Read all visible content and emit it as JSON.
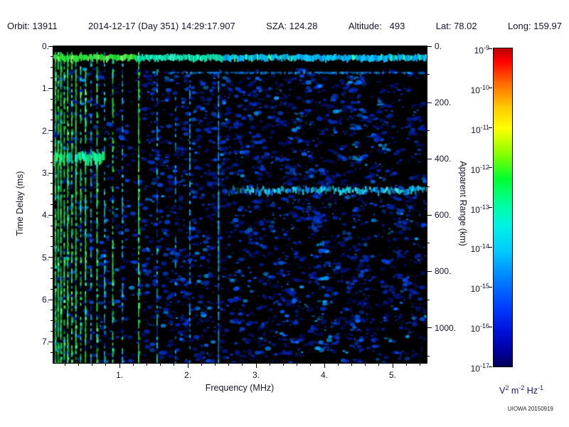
{
  "header": {
    "segments": [
      "Orbit: 13911",
      "2014-12-17 (Day 351) 14:29:17.907",
      "SZA: 124.28",
      "Altitude:   493",
      "Lat: 78.02",
      "Long: 159.97"
    ]
  },
  "credit": "UIOWA 20150919",
  "chart_data": {
    "type": "heatmap",
    "description": "Radar sounder ionogram: received spectral density vs frequency (x) and time delay / apparent range (y), log color scale",
    "xlabel": "Frequency (MHz)",
    "ylabel_left": "Time Delay (ms)",
    "ylabel_right": "Apparent Range (km)",
    "x_range": [
      0.03,
      5.5
    ],
    "x_ticks": [
      1,
      2,
      3,
      4,
      5
    ],
    "x_tick_labels": [
      "1.",
      "2.",
      "3.",
      "4.",
      "5."
    ],
    "x_minor_step": 0.2,
    "y_range": [
      0,
      7.5
    ],
    "y_ticks": [
      0,
      1,
      2,
      3,
      4,
      5,
      6,
      7
    ],
    "y_tick_labels": [
      "0.",
      "1.",
      "2.",
      "3.",
      "4.",
      "5.",
      "6.",
      "7."
    ],
    "y_minor_step": 0.25,
    "y2_range": [
      0,
      1125
    ],
    "y2_ticks": [
      0,
      200,
      400,
      600,
      800,
      1000
    ],
    "y2_tick_labels": [
      "0.",
      "200.",
      "400.",
      "600.",
      "800.",
      "1000."
    ],
    "y2_minor_step": 100,
    "background": "#000000",
    "colorbar": {
      "scale": "log",
      "value_range_exponents": [
        -17,
        -9
      ],
      "tick_exponents": [
        -9,
        -10,
        -11,
        -12,
        -13,
        -14,
        -15,
        -16,
        -17
      ],
      "unit_segments": [
        [
          "V",
          false
        ],
        [
          "2",
          true
        ],
        [
          " m",
          false
        ],
        [
          "-2",
          true
        ],
        [
          " Hz",
          false
        ],
        [
          "-1",
          true
        ]
      ],
      "gradient": [
        [
          "#bb0000",
          0
        ],
        [
          "#ff0000",
          0.04
        ],
        [
          "#ff6a00",
          0.11
        ],
        [
          "#ffc400",
          0.18
        ],
        [
          "#ffff00",
          0.25
        ],
        [
          "#8cff00",
          0.33
        ],
        [
          "#00ff2e",
          0.41
        ],
        [
          "#00ff9e",
          0.49
        ],
        [
          "#00f2e6",
          0.56
        ],
        [
          "#00c8ff",
          0.64
        ],
        [
          "#0084ff",
          0.72
        ],
        [
          "#0040ff",
          0.81
        ],
        [
          "#0010d8",
          0.89
        ],
        [
          "#0000a0",
          0.95
        ],
        [
          "#000055",
          1
        ]
      ]
    },
    "features": {
      "seed": 1337,
      "speckle": {
        "count": 3800,
        "palette": [
          "#001070",
          "#0020a8",
          "#0030cc",
          "#0048e8",
          "#0066ff",
          "#00a0ff"
        ],
        "palette_weights": [
          0.3,
          0.24,
          0.18,
          0.14,
          0.09,
          0.05
        ]
      },
      "top_band": {
        "delay": 0.27,
        "freq_start": 0.03,
        "freq_end": 5.5
      },
      "second_trace": {
        "delay": 0.62,
        "freq_start": 1.75,
        "freq_end": 5.5
      },
      "surface_echo": {
        "delay": 3.42,
        "freq_start": 2.55,
        "freq_end": 5.5
      },
      "green_patch": {
        "freq_start": 0.03,
        "freq_end": 0.78,
        "delay_start": 2.48,
        "delay_end": 2.78
      },
      "plasma_lines": [
        {
          "f": 0.06,
          "i": 1.0
        },
        {
          "f": 0.1,
          "i": 0.9
        },
        {
          "f": 0.14,
          "i": 1.0
        },
        {
          "f": 0.19,
          "i": 0.8
        },
        {
          "f": 0.24,
          "i": 1.0
        },
        {
          "f": 0.3,
          "i": 0.75
        },
        {
          "f": 0.36,
          "i": 0.95
        },
        {
          "f": 0.43,
          "i": 0.65
        },
        {
          "f": 0.5,
          "i": 0.9
        },
        {
          "f": 0.58,
          "i": 0.55
        },
        {
          "f": 0.67,
          "i": 0.85
        },
        {
          "f": 0.78,
          "i": 0.5
        },
        {
          "f": 0.9,
          "i": 0.7
        },
        {
          "f": 1.04,
          "i": 0.45
        },
        {
          "f": 1.28,
          "i": 0.95
        },
        {
          "f": 1.55,
          "i": 0.3
        }
      ],
      "partial_lines": [
        {
          "f": 1.82,
          "d0": 1.0,
          "d1": 7.5,
          "i": 0.3
        },
        {
          "f": 2.03,
          "d0": 0.9,
          "d1": 7.5,
          "i": 0.5
        },
        {
          "f": 2.45,
          "d0": 0.55,
          "d1": 7.5,
          "i": 0.8
        }
      ]
    }
  }
}
